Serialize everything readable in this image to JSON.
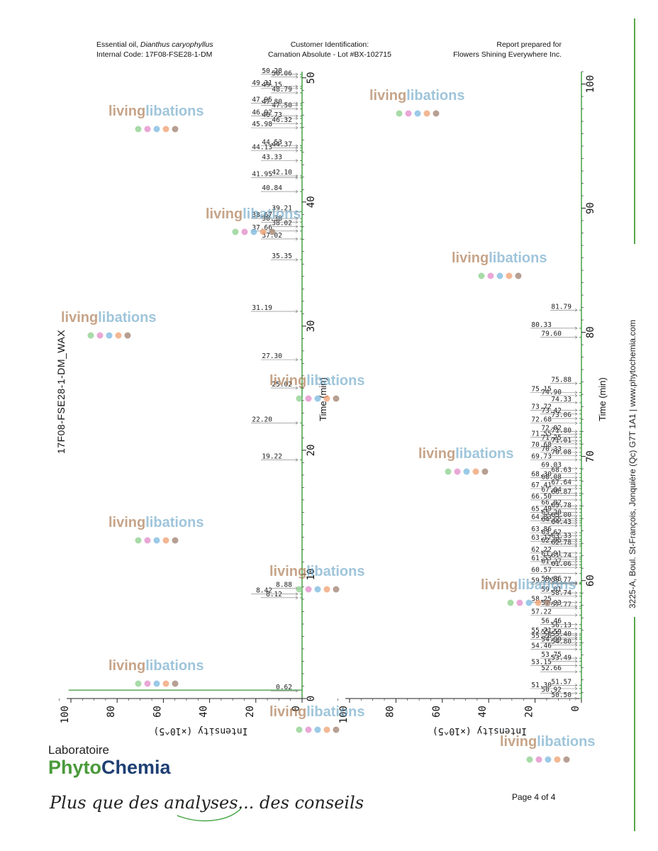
{
  "header": {
    "essential_oil_label": "Essential oil,",
    "species": "Dianthus caryophyllus",
    "internal_code": "Internal Code: 17F08-FSE28-1-DM",
    "customer_title": "Customer Identification:",
    "customer_value": "Carnation Absolute - Lot #BX-102715",
    "report_title": "Report prepared for",
    "report_value": "Flowers Shining Everywhere Inc."
  },
  "sample_name": "17F08-FSE28-1-DM_WAX",
  "address": "3225-A, Boul. St-François, Jonquière (Qc)  G7T 1A1  |  www.phytochemia.com",
  "watermark": {
    "text_a": "living",
    "text_b": "libations",
    "color_a": "#a0683a",
    "color_b": "#5f9fc4"
  },
  "footer": {
    "lab": "Laboratoire",
    "brand_a": "Phytο",
    "brand_b": "Chemia",
    "tagline": "Plus que des analyses... des conseils",
    "page": "Page 4 of 4"
  },
  "colors": {
    "line": "#3a9a3a",
    "accent": "#4aa84a",
    "axis": "#222222"
  },
  "chart_data": [
    {
      "type": "line",
      "title": "17F08-FSE28-1-DM_WAX",
      "xlabel": "Time (min)",
      "ylabel": "Intensity (×10^5)",
      "xlim": [
        0,
        50.5
      ],
      "ylim": [
        0,
        106
      ],
      "x_ticks": [
        0,
        10,
        20,
        30,
        40,
        50
      ],
      "y_ticks": [
        0,
        20,
        40,
        60,
        80,
        100
      ],
      "peak_labels": [
        {
          "t": 0.62,
          "label": "0.62",
          "h": 101
        },
        {
          "t": 8.12,
          "label": "8.12",
          "h": 0.5
        },
        {
          "t": 8.42,
          "label": "8.42",
          "h": 0.5
        },
        {
          "t": 8.88,
          "label": "8.88",
          "h": 0.5
        },
        {
          "t": 19.22,
          "label": "19.22",
          "h": 0.3
        },
        {
          "t": 22.2,
          "label": "22.20",
          "h": 0.3
        },
        {
          "t": 25.02,
          "label": "25.02",
          "h": 0.3
        },
        {
          "t": 27.3,
          "label": "27.30",
          "h": 0.3
        },
        {
          "t": 31.19,
          "label": "31.19",
          "h": 0.3
        },
        {
          "t": 35.35,
          "label": "35.35",
          "h": 0.3
        },
        {
          "t": 37.02,
          "label": "37.02",
          "h": 0.3
        },
        {
          "t": 37.66,
          "label": "37.66",
          "h": 0.3
        },
        {
          "t": 38.02,
          "label": "38.02",
          "h": 0.3
        },
        {
          "t": 38.38,
          "label": "38.38",
          "h": 0.3
        },
        {
          "t": 38.67,
          "label": "38.67",
          "h": 0.3
        },
        {
          "t": 39.21,
          "label": "39.21",
          "h": 0.3
        },
        {
          "t": 40.84,
          "label": "40.84",
          "h": 0.3
        },
        {
          "t": 41.95,
          "label": "41.95",
          "h": 0.3
        },
        {
          "t": 42.1,
          "label": "42.10",
          "h": 0.3
        },
        {
          "t": 43.33,
          "label": "43.33",
          "h": 0.3
        },
        {
          "t": 44.13,
          "label": "44.13",
          "h": 0.3
        },
        {
          "t": 44.37,
          "label": "44.37",
          "h": 0.3
        },
        {
          "t": 44.53,
          "label": "44.53",
          "h": 0.3
        },
        {
          "t": 45.98,
          "label": "45.98",
          "h": 0.3
        },
        {
          "t": 46.32,
          "label": "46.32",
          "h": 0.3
        },
        {
          "t": 46.73,
          "label": "46.73",
          "h": 0.3
        },
        {
          "t": 46.92,
          "label": "46.92",
          "h": 0.3
        },
        {
          "t": 47.5,
          "label": "47.50",
          "h": 0.3
        },
        {
          "t": 47.8,
          "label": "47.80",
          "h": 0.3
        },
        {
          "t": 47.95,
          "label": "47.95",
          "h": 0.3
        },
        {
          "t": 48.79,
          "label": "48.79",
          "h": 0.3
        },
        {
          "t": 49.15,
          "label": "49.15",
          "h": 0.3
        },
        {
          "t": 49.31,
          "label": "49.31",
          "h": 0.3
        },
        {
          "t": 50.06,
          "label": "50.06",
          "h": 0.3
        },
        {
          "t": 50.28,
          "label": "50.28",
          "h": 0.3
        }
      ]
    },
    {
      "type": "line",
      "xlabel": "Time (min)",
      "ylabel": "Intensity (×10^5)",
      "xlim": [
        50.5,
        101
      ],
      "ylim": [
        0,
        106
      ],
      "x_ticks": [
        60,
        70,
        80,
        90,
        100
      ],
      "y_ticks": [
        0,
        20,
        40,
        60,
        80,
        100
      ],
      "peak_labels": [
        {
          "t": 50.5,
          "label": "50.50",
          "h": 0.3
        },
        {
          "t": 50.92,
          "label": "50.92",
          "h": 0.3
        },
        {
          "t": 51.3,
          "label": "51.30",
          "h": 0.3
        },
        {
          "t": 51.57,
          "label": "51.57",
          "h": 0.3
        },
        {
          "t": 52.66,
          "label": "52.66",
          "h": 0.3
        },
        {
          "t": 53.15,
          "label": "53.15",
          "h": 0.3
        },
        {
          "t": 53.49,
          "label": "53.49",
          "h": 0.3
        },
        {
          "t": 53.75,
          "label": "53.75",
          "h": 0.3
        },
        {
          "t": 54.46,
          "label": "54.46",
          "h": 0.3
        },
        {
          "t": 54.8,
          "label": "54.80",
          "h": 0.3
        },
        {
          "t": 54.99,
          "label": "54.99",
          "h": 0.3
        },
        {
          "t": 55.26,
          "label": "55.26",
          "h": 0.3
        },
        {
          "t": 55.4,
          "label": "55.40",
          "h": 0.3
        },
        {
          "t": 55.59,
          "label": "55.59",
          "h": 0.3
        },
        {
          "t": 55.71,
          "label": "55.71",
          "h": 0.3
        },
        {
          "t": 56.13,
          "label": "56.13",
          "h": 0.3
        },
        {
          "t": 56.46,
          "label": "56.46",
          "h": 0.3
        },
        {
          "t": 57.22,
          "label": "57.22",
          "h": 0.3
        },
        {
          "t": 57.77,
          "label": "57.77",
          "h": 0.3
        },
        {
          "t": 57.93,
          "label": "57.93",
          "h": 0.3
        },
        {
          "t": 58.25,
          "label": "58.25",
          "h": 0.3
        },
        {
          "t": 58.74,
          "label": "58.74",
          "h": 0.3
        },
        {
          "t": 59.01,
          "label": "59.01",
          "h": 0.3
        },
        {
          "t": 59.72,
          "label": "59.72",
          "h": 0.3
        },
        {
          "t": 59.77,
          "label": "59.77",
          "h": 0.3
        },
        {
          "t": 59.86,
          "label": "59.86",
          "h": 0.3
        },
        {
          "t": 60.57,
          "label": "60.57",
          "h": 0.3
        },
        {
          "t": 61.06,
          "label": "61.06",
          "h": 0.3
        },
        {
          "t": 61.27,
          "label": "61.27",
          "h": 0.3
        },
        {
          "t": 61.53,
          "label": "61.53",
          "h": 0.3
        },
        {
          "t": 61.74,
          "label": "61.74",
          "h": 0.3
        },
        {
          "t": 61.91,
          "label": "61.91",
          "h": 0.3
        },
        {
          "t": 62.22,
          "label": "62.22",
          "h": 0.3
        },
        {
          "t": 62.78,
          "label": "62.78",
          "h": 0.3
        },
        {
          "t": 62.95,
          "label": "62.95",
          "h": 0.3
        },
        {
          "t": 63.17,
          "label": "63.17",
          "h": 0.3
        },
        {
          "t": 63.33,
          "label": "63.33",
          "h": 0.3
        },
        {
          "t": 63.62,
          "label": "63.62",
          "h": 0.3
        },
        {
          "t": 63.86,
          "label": "63.86",
          "h": 0.3
        },
        {
          "t": 64.43,
          "label": "64.43",
          "h": 0.3
        },
        {
          "t": 64.65,
          "label": "64.65",
          "h": 0.3
        },
        {
          "t": 64.83,
          "label": "64.83",
          "h": 0.3
        },
        {
          "t": 65.0,
          "label": "65.00",
          "h": 0.3
        },
        {
          "t": 65.2,
          "label": "65.20",
          "h": 0.3
        },
        {
          "t": 65.49,
          "label": "65.49",
          "h": 0.3
        },
        {
          "t": 65.78,
          "label": "65.78",
          "h": 0.3
        },
        {
          "t": 66.02,
          "label": "66.02",
          "h": 0.3
        },
        {
          "t": 66.5,
          "label": "66.50",
          "h": 0.3
        },
        {
          "t": 66.87,
          "label": "66.87",
          "h": 0.3
        },
        {
          "t": 67.04,
          "label": "67.04",
          "h": 0.3
        },
        {
          "t": 67.41,
          "label": "67.41",
          "h": 0.3
        },
        {
          "t": 67.64,
          "label": "67.64",
          "h": 0.3
        },
        {
          "t": 68.08,
          "label": "68.08",
          "h": 0.3
        },
        {
          "t": 68.3,
          "label": "68.30",
          "h": 0.3
        },
        {
          "t": 68.63,
          "label": "68.63",
          "h": 0.3
        },
        {
          "t": 69.03,
          "label": "69.03",
          "h": 0.3
        },
        {
          "t": 69.73,
          "label": "69.73",
          "h": 0.3
        },
        {
          "t": 70.08,
          "label": "70.08",
          "h": 0.3
        },
        {
          "t": 70.33,
          "label": "70.33",
          "h": 0.3
        },
        {
          "t": 70.68,
          "label": "70.68",
          "h": 0.3
        },
        {
          "t": 71.01,
          "label": "71.01",
          "h": 0.3
        },
        {
          "t": 71.25,
          "label": "71.25",
          "h": 0.3
        },
        {
          "t": 71.55,
          "label": "71.55",
          "h": 0.3
        },
        {
          "t": 71.8,
          "label": "71.80",
          "h": 0.3
        },
        {
          "t": 72.02,
          "label": "72.02",
          "h": 0.3
        },
        {
          "t": 72.68,
          "label": "72.68",
          "h": 0.3
        },
        {
          "t": 73.06,
          "label": "73.06",
          "h": 0.3
        },
        {
          "t": 73.42,
          "label": "73.42",
          "h": 0.3
        },
        {
          "t": 73.72,
          "label": "73.72",
          "h": 0.3
        },
        {
          "t": 74.33,
          "label": "74.33",
          "h": 0.3
        },
        {
          "t": 74.9,
          "label": "74.90",
          "h": 0.3
        },
        {
          "t": 75.15,
          "label": "75.15",
          "h": 0.3
        },
        {
          "t": 75.88,
          "label": "75.88",
          "h": 0.3
        },
        {
          "t": 79.6,
          "label": "79.60",
          "h": 0.3
        },
        {
          "t": 80.33,
          "label": "80.33",
          "h": 0.3
        },
        {
          "t": 81.79,
          "label": "81.79",
          "h": 0.3
        }
      ]
    }
  ]
}
